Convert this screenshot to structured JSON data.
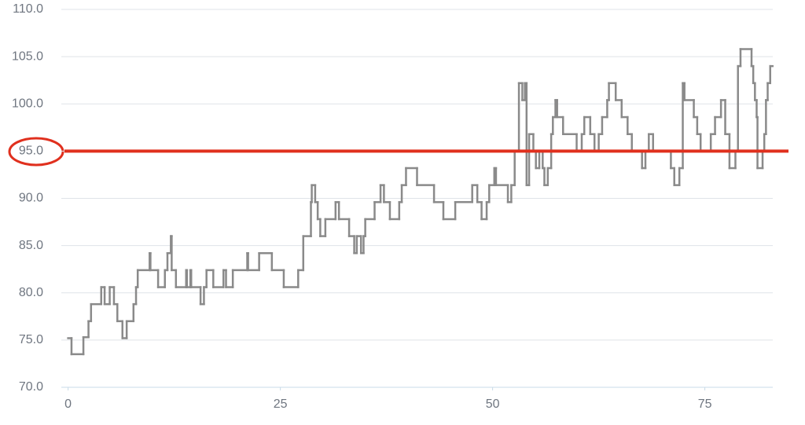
{
  "chart_data": {
    "type": "step",
    "x": [
      0,
      0.4,
      1.8,
      2.4,
      2.7,
      3.9,
      4.3,
      4.9,
      5.4,
      5.8,
      6.4,
      6.9,
      7.7,
      8,
      8.2,
      9.6,
      9.7,
      10.6,
      11.4,
      11.7,
      12.1,
      12.2,
      12.7,
      13.9,
      14,
      14.4,
      14.5,
      15.6,
      16,
      16.3,
      17.1,
      18.3,
      18.6,
      19.4,
      21.1,
      21.2,
      22.5,
      24,
      25.4,
      27.1,
      27.7,
      28.6,
      28.7,
      29.1,
      29.4,
      29.7,
      30.3,
      31.5,
      31.9,
      33.1,
      33.7,
      34,
      34.5,
      34.8,
      35,
      36.1,
      36.8,
      37.2,
      37.9,
      39,
      39.3,
      39.8,
      41.1,
      43.1,
      44.2,
      45.6,
      47.6,
      48.2,
      48.7,
      49.3,
      49.6,
      50.2,
      50.4,
      51.8,
      52.2,
      52.6,
      53.1,
      53.5,
      53.8,
      54,
      54.3,
      54.8,
      55.1,
      55.5,
      55.9,
      56.1,
      56.5,
      56.9,
      57.1,
      57.4,
      57.6,
      58.3,
      59.9,
      60.5,
      60.8,
      61.5,
      62,
      62.5,
      62.9,
      63.5,
      63.7,
      64.5,
      65.2,
      65.9,
      66.4,
      67.6,
      68,
      68.4,
      68.9,
      71,
      71.4,
      72,
      72.4,
      72.6,
      73.7,
      74.1,
      74.5,
      75.7,
      76.2,
      76.9,
      77.4,
      77.9,
      78.6,
      78.9,
      79.2,
      80.5,
      80.7,
      80.9,
      81.1,
      81.2,
      81.8,
      82,
      82.2,
      82.4,
      82.7
    ],
    "series": [
      {
        "color": "#8a8a8a",
        "values": [
          75.2,
          73.5,
          75.3,
          77,
          78.8,
          80.6,
          78.8,
          80.6,
          78.8,
          77,
          75.2,
          77,
          78.8,
          80.6,
          82.4,
          84.2,
          82.4,
          80.6,
          82.4,
          84.2,
          86,
          82.4,
          80.6,
          82.4,
          80.6,
          82.4,
          80.6,
          78.8,
          80.6,
          82.4,
          80.6,
          82.4,
          80.6,
          82.4,
          84.2,
          82.4,
          84.2,
          82.4,
          80.6,
          82.4,
          86,
          89.6,
          91.4,
          89.6,
          87.8,
          86,
          87.8,
          89.6,
          87.8,
          86,
          84.2,
          86,
          84.2,
          86,
          87.8,
          89.6,
          91.4,
          89.6,
          87.8,
          89.6,
          91.4,
          93.2,
          91.4,
          89.6,
          87.8,
          89.6,
          91.4,
          89.6,
          87.8,
          89.6,
          91.4,
          93.2,
          91.4,
          89.6,
          91.4,
          95,
          102.2,
          100.4,
          102.2,
          91.4,
          96.8,
          95,
          93.2,
          95,
          93.2,
          91.4,
          93.2,
          96.8,
          98.6,
          100.4,
          98.6,
          96.8,
          95,
          96.8,
          98.6,
          96.8,
          95,
          96.8,
          98.6,
          100.4,
          102.2,
          100.4,
          98.6,
          96.8,
          95,
          93.2,
          95,
          96.8,
          95,
          93.2,
          91.4,
          93.2,
          102.2,
          100.4,
          98.6,
          96.8,
          95,
          96.8,
          98.6,
          100.4,
          96.8,
          93.2,
          95,
          104,
          105.8,
          104,
          102.2,
          100.4,
          98.6,
          93.2,
          95,
          96.8,
          100.4,
          102.2,
          104
        ]
      }
    ],
    "reference_line": {
      "value": 95,
      "color": "#e0301e"
    },
    "xlim": [
      -0.8,
      83
    ],
    "ylim": [
      70,
      110
    ],
    "xticks": [
      0,
      25,
      50,
      75
    ],
    "yticks": [
      {
        "value": 70,
        "label": "70.0"
      },
      {
        "value": 75,
        "label": "75.0"
      },
      {
        "value": 80,
        "label": "80.0"
      },
      {
        "value": 85,
        "label": "85.0"
      },
      {
        "value": 90,
        "label": "90.0"
      },
      {
        "value": 95,
        "label": "95.0"
      },
      {
        "value": 100,
        "label": "100.0"
      },
      {
        "value": 105,
        "label": "105.0"
      },
      {
        "value": 110,
        "label": "110.0"
      }
    ],
    "grid": true
  }
}
